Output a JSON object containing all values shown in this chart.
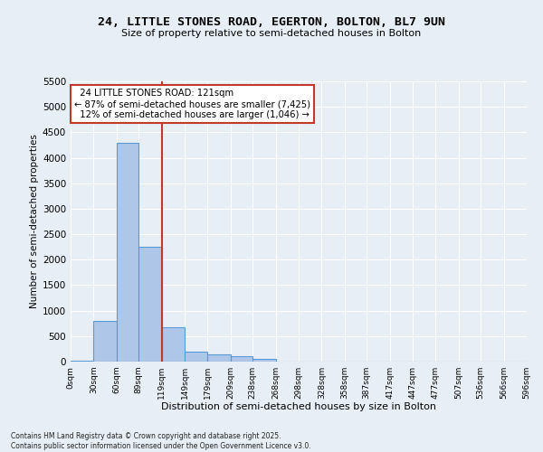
{
  "title_line1": "24, LITTLE STONES ROAD, EGERTON, BOLTON, BL7 9UN",
  "title_line2": "Size of property relative to semi-detached houses in Bolton",
  "xlabel": "Distribution of semi-detached houses by size in Bolton",
  "ylabel": "Number of semi-detached properties",
  "property_label": "24 LITTLE STONES ROAD: 121sqm",
  "pct_smaller": 87,
  "count_smaller": 7425,
  "pct_larger": 12,
  "count_larger": 1046,
  "bin_edges": [
    0,
    30,
    60,
    89,
    119,
    149,
    179,
    209,
    238,
    268,
    298,
    328,
    358,
    387,
    417,
    447,
    477,
    507,
    536,
    566,
    596
  ],
  "bin_labels": [
    "0sqm",
    "30sqm",
    "60sqm",
    "89sqm",
    "119sqm",
    "149sqm",
    "179sqm",
    "209sqm",
    "238sqm",
    "268sqm",
    "298sqm",
    "328sqm",
    "358sqm",
    "387sqm",
    "417sqm",
    "447sqm",
    "477sqm",
    "507sqm",
    "536sqm",
    "566sqm",
    "596sqm"
  ],
  "bar_heights": [
    10,
    800,
    4300,
    2250,
    680,
    200,
    150,
    100,
    50,
    0,
    0,
    0,
    0,
    0,
    0,
    0,
    0,
    0,
    0,
    0
  ],
  "bar_color": "#aec6e8",
  "bar_edge_color": "#5b9bd5",
  "vline_color": "#c0392b",
  "vline_x": 119,
  "ylim": [
    0,
    5500
  ],
  "yticks": [
    0,
    500,
    1000,
    1500,
    2000,
    2500,
    3000,
    3500,
    4000,
    4500,
    5000,
    5500
  ],
  "background_color": "#e8eef5",
  "footer_line1": "Contains HM Land Registry data © Crown copyright and database right 2025.",
  "footer_line2": "Contains public sector information licensed under the Open Government Licence v3.0."
}
